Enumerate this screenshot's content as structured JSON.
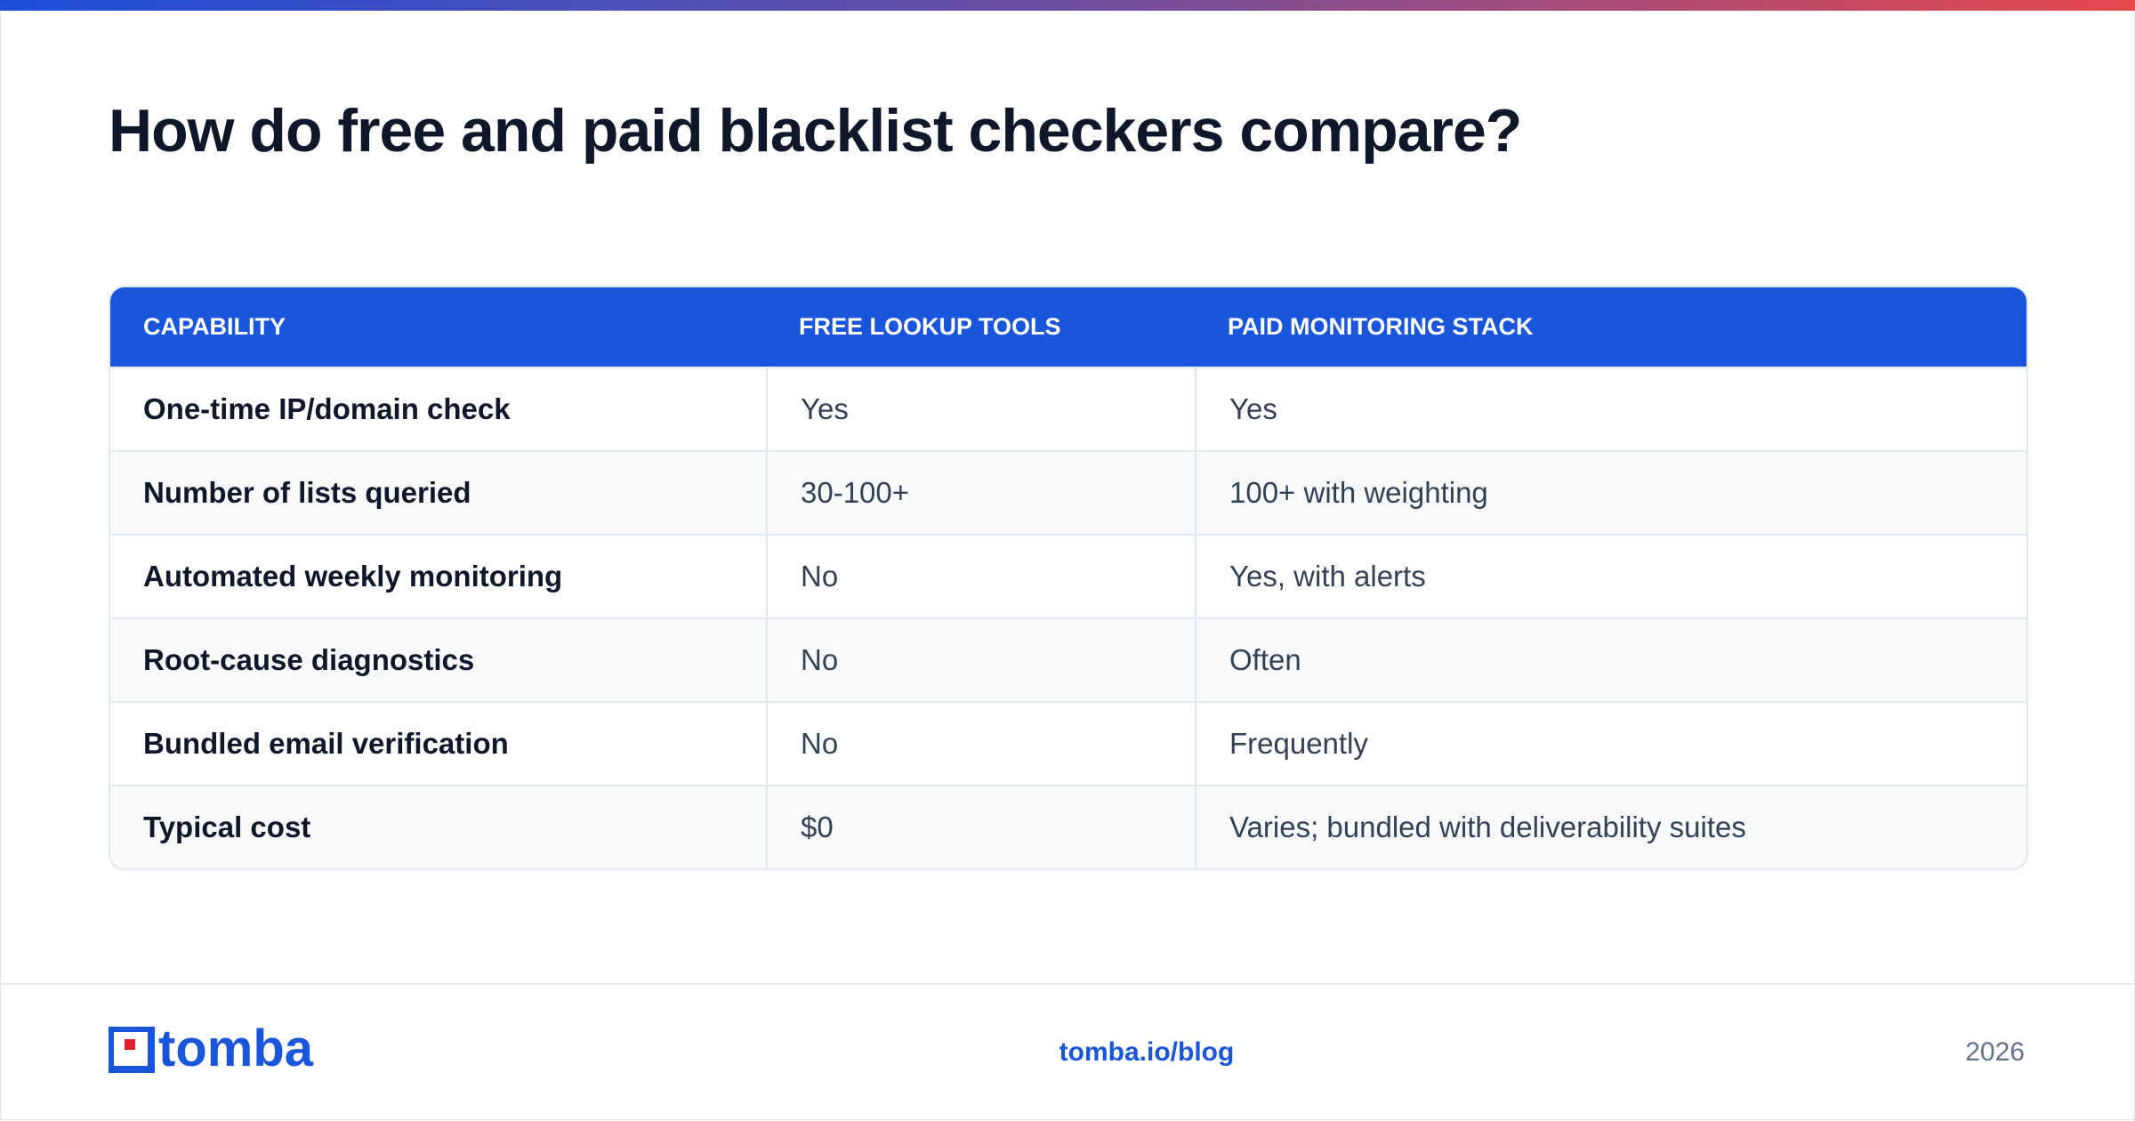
{
  "header": {
    "title": "How do free and paid blacklist checkers compare?"
  },
  "table": {
    "columns": [
      "CAPABILITY",
      "FREE LOOKUP TOOLS",
      "PAID MONITORING STACK"
    ],
    "rows": [
      [
        "One-time IP/domain check",
        "Yes",
        "Yes"
      ],
      [
        "Number of lists queried",
        "30-100+",
        "100+ with weighting"
      ],
      [
        "Automated weekly monitoring",
        "No",
        "Yes, with alerts"
      ],
      [
        "Root-cause diagnostics",
        "No",
        "Often"
      ],
      [
        "Bundled email verification",
        "No",
        "Frequently"
      ],
      [
        "Typical cost",
        "$0",
        "Varies; bundled with deliverability suites"
      ]
    ]
  },
  "footer": {
    "logo": "tomba",
    "link": "tomba.io/blog",
    "year": "2026"
  }
}
